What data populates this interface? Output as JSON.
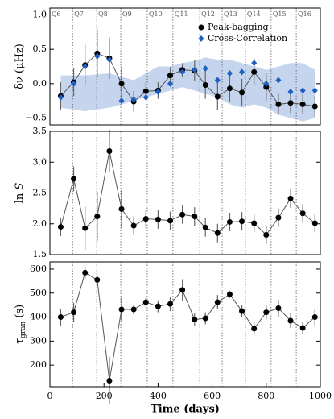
{
  "chart_data": [
    {
      "type": "errorbar",
      "ylabel": [
        "δν (μHz)"
      ],
      "ylabel_style": [
        "normal"
      ],
      "x": [
        40,
        88,
        130,
        175,
        220,
        265,
        310,
        355,
        400,
        445,
        490,
        535,
        575,
        620,
        665,
        710,
        755,
        800,
        845,
        890,
        935,
        980
      ],
      "xlim": [
        0,
        1000
      ],
      "ylim": [
        -0.6,
        1.1
      ],
      "yticks": [
        {
          "value": -0.5,
          "label": "−0.5"
        },
        {
          "value": 0,
          "label": "0.0"
        },
        {
          "value": 0.5,
          "label": "0.5"
        },
        {
          "value": 1,
          "label": "1.0"
        }
      ],
      "annotations": [
        {
          "label": "Q6",
          "x": 0
        },
        {
          "label": "Q7",
          "x": 84
        },
        {
          "label": "Q8",
          "x": 173
        },
        {
          "label": "Q9",
          "x": 262
        },
        {
          "label": "Q10",
          "x": 360
        },
        {
          "label": "Q11",
          "x": 455
        },
        {
          "label": "Q12",
          "x": 554
        },
        {
          "label": "Q13",
          "x": 637
        },
        {
          "label": "Q14",
          "x": 723
        },
        {
          "label": "Q15",
          "x": 818
        },
        {
          "label": "Q16",
          "x": 911
        }
      ],
      "band": {
        "color": "#c6d5ee",
        "x": [
          40,
          130,
          220,
          265,
          310,
          400,
          445,
          490,
          535,
          575,
          620,
          665,
          710,
          755,
          800,
          845,
          890,
          935,
          980
        ],
        "upper": [
          0.12,
          0.12,
          0.15,
          0.1,
          0.05,
          0.25,
          0.25,
          0.3,
          0.33,
          0.38,
          0.35,
          0.35,
          0.3,
          0.25,
          0.2,
          0.25,
          0.3,
          0.3,
          0.2
        ],
        "lower": [
          -0.35,
          -0.4,
          -0.35,
          -0.3,
          -0.25,
          -0.15,
          -0.1,
          -0.05,
          -0.1,
          -0.15,
          -0.2,
          -0.3,
          -0.35,
          -0.3,
          -0.35,
          -0.45,
          -0.5,
          -0.55,
          -0.5
        ]
      },
      "legend": "upper right",
      "series": [
        {
          "name": "Peak-bagging",
          "color": "#000000",
          "marker": "circle",
          "line": true,
          "values": [
            -0.18,
            0.02,
            0.27,
            0.44,
            0.37,
            0.0,
            -0.26,
            -0.11,
            -0.1,
            0.12,
            0.2,
            0.19,
            -0.02,
            -0.19,
            -0.07,
            -0.13,
            0.17,
            -0.05,
            -0.3,
            -0.28,
            -0.3,
            -0.33
          ],
          "errors": [
            0.2,
            0.2,
            0.3,
            0.35,
            0.3,
            0.25,
            0.15,
            0.12,
            0.12,
            0.12,
            0.1,
            0.15,
            0.2,
            0.2,
            0.2,
            0.2,
            0.2,
            0.2,
            0.15,
            0.15,
            0.15,
            0.15
          ]
        },
        {
          "name": "Cross-Correlation",
          "color": "#1f5fbf",
          "marker": "diamond",
          "line": false,
          "values": [
            -0.2,
            0.0,
            0.25,
            0.4,
            0.35,
            -0.25,
            -0.23,
            -0.2,
            -0.12,
            0.0,
            0.17,
            0.2,
            0.22,
            0.05,
            0.15,
            0.17,
            0.3,
            0.0,
            0.05,
            -0.12,
            -0.1,
            -0.1
          ]
        }
      ]
    },
    {
      "type": "errorbar",
      "ylabel": [
        "ln ",
        "S"
      ],
      "ylabel_style": [
        "normal",
        "italic"
      ],
      "x": [
        40,
        88,
        130,
        175,
        220,
        265,
        310,
        355,
        400,
        445,
        490,
        535,
        575,
        620,
        665,
        710,
        755,
        800,
        845,
        890,
        935,
        980
      ],
      "xlim": [
        0,
        1000
      ],
      "ylim": [
        1.5,
        3.5
      ],
      "yticks": [
        1.5,
        {
          "value": 2,
          "label": "2.0"
        },
        2.5,
        {
          "value": 3,
          "label": "3.0"
        },
        3.5
      ],
      "series": [
        {
          "color": "#000000",
          "marker": "circle",
          "line": true,
          "values": [
            1.95,
            2.73,
            1.93,
            2.12,
            3.18,
            2.24,
            1.97,
            2.08,
            2.07,
            2.05,
            2.15,
            2.12,
            1.94,
            1.85,
            2.03,
            2.04,
            2.01,
            1.82,
            2.1,
            2.41,
            2.17,
            2.01
          ],
          "errors": [
            0.15,
            0.2,
            0.35,
            0.4,
            0.35,
            0.3,
            0.15,
            0.15,
            0.15,
            0.15,
            0.15,
            0.15,
            0.15,
            0.15,
            0.15,
            0.15,
            0.15,
            0.15,
            0.15,
            0.15,
            0.15,
            0.15
          ]
        }
      ]
    },
    {
      "type": "errorbar",
      "ylabel": [
        "τ",
        "gran",
        " (s)"
      ],
      "ylabel_style": [
        "italic",
        "sub",
        "normal"
      ],
      "xlabel": "Time (days)",
      "x": [
        40,
        88,
        130,
        175,
        220,
        265,
        310,
        355,
        400,
        445,
        490,
        535,
        575,
        620,
        665,
        710,
        755,
        800,
        845,
        890,
        935,
        980
      ],
      "xlim": [
        0,
        1000
      ],
      "xticks": [
        0,
        200,
        400,
        600,
        800,
        1000
      ],
      "ylim": [
        110,
        630
      ],
      "yticks": [
        200,
        300,
        400,
        500,
        600
      ],
      "series": [
        {
          "color": "#000000",
          "marker": "circle",
          "line": true,
          "values": [
            400,
            420,
            585,
            555,
            135,
            432,
            432,
            462,
            445,
            455,
            513,
            390,
            395,
            462,
            495,
            425,
            352,
            420,
            437,
            385,
            355,
            400
          ],
          "errors": [
            35,
            40,
            25,
            20,
            100,
            50,
            20,
            20,
            25,
            30,
            45,
            25,
            25,
            30,
            15,
            25,
            25,
            30,
            35,
            30,
            25,
            35
          ]
        }
      ]
    }
  ]
}
